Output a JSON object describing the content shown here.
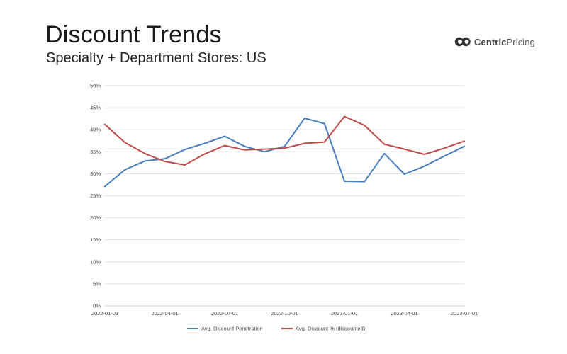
{
  "header": {
    "title": "Discount Trends",
    "subtitle": "Specialty + Department Stores: US"
  },
  "brand": {
    "icon": "centricpricing-logo-icon",
    "name_part1": "Centric",
    "name_part2": "Pricing"
  },
  "colors": {
    "series_blue": "#4a7ebb",
    "series_red": "#be4b48",
    "grid": "#d9d9d9",
    "axis": "#bfbfbf"
  },
  "chart_data": {
    "type": "line",
    "x": [
      "2022-01-01",
      "2022-02-01",
      "2022-03-01",
      "2022-04-01",
      "2022-05-01",
      "2022-06-01",
      "2022-07-01",
      "2022-08-01",
      "2022-09-01",
      "2022-10-01",
      "2022-11-01",
      "2022-12-01",
      "2023-01-01",
      "2023-02-01",
      "2023-03-01",
      "2023-04-01",
      "2023-05-01",
      "2023-06-01",
      "2023-07-01"
    ],
    "x_tick_labels": [
      "2022-01-01",
      "2022-04-01",
      "2022-07-01",
      "2022-10-01",
      "2023-01-01",
      "2023-04-01",
      "2023-07-01"
    ],
    "y_tick_labels": [
      "0%",
      "5%",
      "10%",
      "15%",
      "20%",
      "25%",
      "30%",
      "35%",
      "40%",
      "45%",
      "50%"
    ],
    "ylim": [
      0,
      50
    ],
    "y_unit": "%",
    "grid": "horizontal",
    "legend_position": "bottom",
    "series": [
      {
        "name": "Avg. Discount Penetration",
        "color": "#4a7ebb",
        "values": [
          27.1,
          30.9,
          32.9,
          33.4,
          35.5,
          36.9,
          38.5,
          36.2,
          35.0,
          36.2,
          42.6,
          41.4,
          28.3,
          28.2,
          34.6,
          29.9,
          31.7,
          34.0,
          36.2
        ]
      },
      {
        "name": "Avg. Discount % (discounted)",
        "color": "#be4b48",
        "values": [
          41.2,
          37.1,
          34.6,
          32.8,
          32.0,
          34.5,
          36.4,
          35.4,
          35.6,
          35.8,
          36.9,
          37.2,
          43.0,
          41.0,
          36.7,
          35.6,
          34.4,
          35.8,
          37.4
        ]
      }
    ]
  }
}
